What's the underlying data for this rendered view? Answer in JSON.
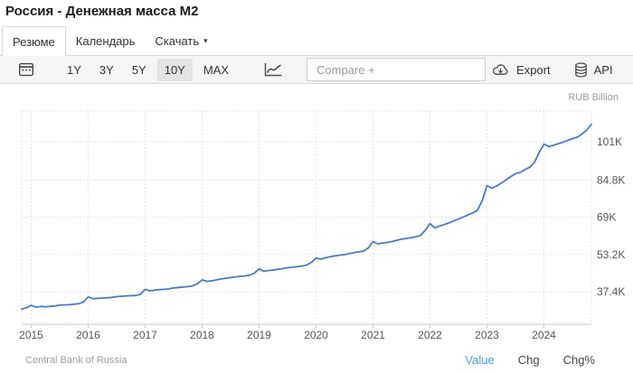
{
  "page": {
    "title": "Россия - Денежная масса М2"
  },
  "tabs": [
    {
      "label": "Резюме",
      "active": true
    },
    {
      "label": "Календарь",
      "active": false
    },
    {
      "label": "Скачать",
      "active": false,
      "caret": "▾"
    }
  ],
  "toolbar": {
    "ranges": [
      "1Y",
      "3Y",
      "5Y",
      "10Y",
      "MAX"
    ],
    "active_range": "10Y",
    "compare_placeholder": "Compare +",
    "export_label": "Export",
    "api_label": "API"
  },
  "chart_data": {
    "type": "line",
    "title": "Россия - Денежная масса М2",
    "unit_label": "RUB Billion",
    "frequency": "monthly",
    "x_start": "2014-11",
    "x_end": "2024-11",
    "x_tick_labels": [
      "2015",
      "2016",
      "2017",
      "2018",
      "2019",
      "2020",
      "2021",
      "2022",
      "2023",
      "2024"
    ],
    "y_tick_labels": [
      "37.4K",
      "53.2K",
      "69K",
      "84.8K",
      "101K"
    ],
    "y_tick_values": [
      37400,
      53200,
      69000,
      84800,
      101000
    ],
    "grid": "dashed",
    "legend": "none",
    "line_color": "#4d7ac1",
    "values_rub_billion": [
      30000,
      30600,
      31600,
      30800,
      31200,
      31000,
      31200,
      31400,
      31700,
      31800,
      31900,
      32100,
      32300,
      33000,
      35200,
      34400,
      34600,
      34700,
      34800,
      35000,
      35300,
      35500,
      35600,
      35700,
      35800,
      36300,
      38400,
      37800,
      38100,
      38300,
      38400,
      38600,
      39000,
      39200,
      39400,
      39600,
      39900,
      40800,
      42400,
      41800,
      42000,
      42400,
      42800,
      43100,
      43400,
      43700,
      43900,
      44100,
      44400,
      45300,
      47100,
      46100,
      46400,
      46600,
      46900,
      47200,
      47600,
      47800,
      48000,
      48300,
      48700,
      49800,
      51700,
      51200,
      51800,
      52300,
      52600,
      52900,
      53100,
      53600,
      54000,
      54300,
      54600,
      56000,
      58700,
      57700,
      58000,
      58300,
      58700,
      59200,
      59700,
      60000,
      60300,
      60700,
      61300,
      63500,
      66300,
      64500,
      65200,
      65900,
      66600,
      67400,
      68300,
      69100,
      70000,
      70800,
      72000,
      76000,
      82400,
      81300,
      82200,
      83500,
      84800,
      86200,
      87500,
      88000,
      89200,
      90200,
      92300,
      96500,
      100000,
      99000,
      99500,
      100200,
      100800,
      101600,
      102300,
      103000,
      104200,
      106000,
      108400
    ]
  },
  "footer": {
    "source": "Central Bank of Russia",
    "links": [
      {
        "label": "Value",
        "active": true
      },
      {
        "label": "Chg",
        "active": false
      },
      {
        "label": "Chg%",
        "active": false
      }
    ]
  },
  "colors": {
    "line": "#4d7ac1",
    "active_link": "#459be5",
    "toolbar_bg": "#f5f5f5",
    "active_range_bg": "#e3e3e3"
  }
}
